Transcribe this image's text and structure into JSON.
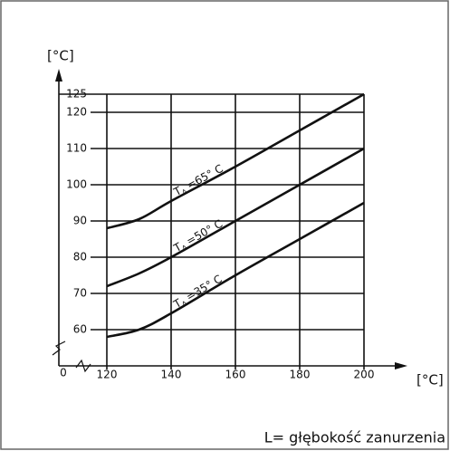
{
  "chart_data": {
    "type": "line",
    "y_unit_label": "[°C]",
    "x_unit_label": "[°C]",
    "footnote": "L= głębokość zanurzenia",
    "origin_label": 0,
    "xlim": [
      120,
      200
    ],
    "xticks": [
      120,
      140,
      160,
      180,
      200
    ],
    "ylim": [
      50,
      125
    ],
    "yticks": [
      60,
      70,
      80,
      90,
      100,
      110,
      120,
      125
    ],
    "grid": true,
    "x": [
      120,
      130,
      140,
      160,
      180,
      200
    ],
    "series": [
      {
        "label": {
          "main": "T",
          "sub": "A",
          "rest": "=65° C"
        },
        "color": "#111111",
        "values": [
          88,
          90.5,
          95.5,
          105,
          115,
          125
        ]
      },
      {
        "label": {
          "main": "T",
          "sub": "A",
          "rest": "=50° C"
        },
        "color": "#111111",
        "values": [
          72,
          75.5,
          80,
          90,
          100,
          110
        ]
      },
      {
        "label": {
          "main": "T",
          "sub": "A",
          "rest": "=35° C"
        },
        "color": "#111111",
        "values": [
          58,
          60,
          64.5,
          75,
          85,
          95
        ]
      }
    ]
  }
}
